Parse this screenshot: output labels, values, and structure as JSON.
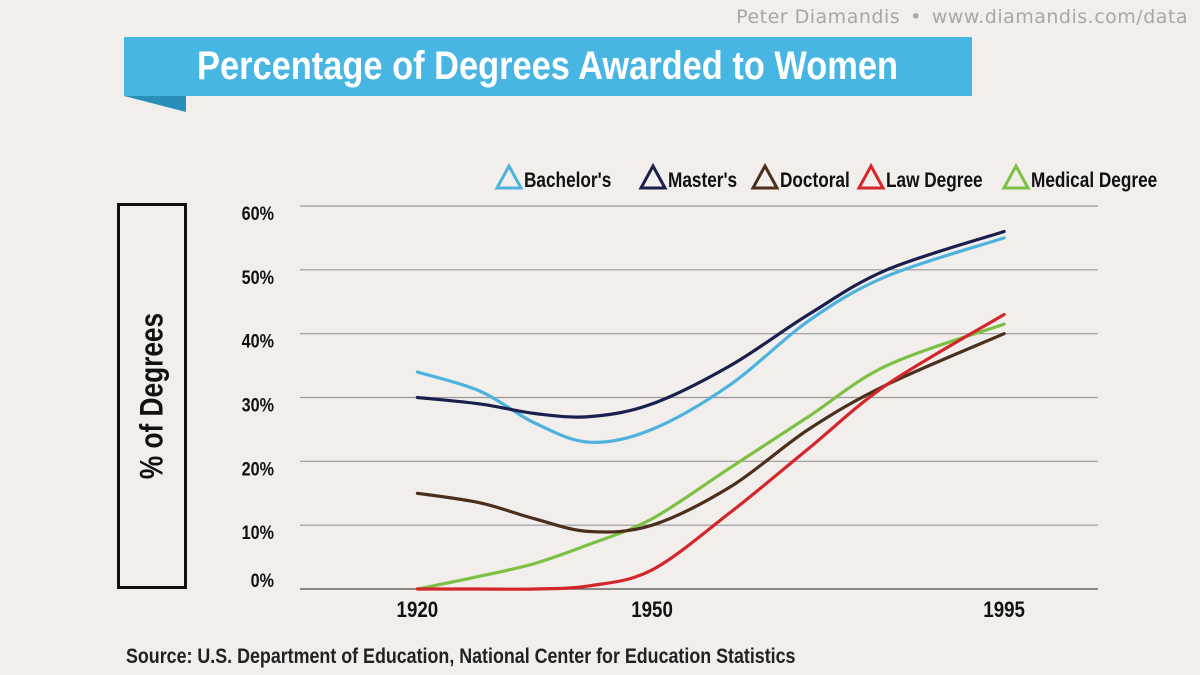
{
  "header": {
    "author": "Peter Diamandis",
    "separator": "•",
    "url": "www.diamandis.com/data"
  },
  "colors": {
    "banner": "#47b6e2",
    "banner_fold": "#2a8fb8",
    "background": "#f1eeeb",
    "grid": "#999999",
    "text": "#111111"
  },
  "chart_data": {
    "type": "line",
    "title": "Percentage of Degrees Awarded to Women",
    "ylabel": "% of Degrees",
    "xlabel": "",
    "ylim": [
      0,
      60
    ],
    "yticks": [
      0,
      10,
      20,
      30,
      40,
      50,
      60
    ],
    "ytick_labels": [
      "0%",
      "10%",
      "20%",
      "30%",
      "40%",
      "50%",
      "60%"
    ],
    "xticks": [
      1920,
      1950,
      1995
    ],
    "xtick_labels": [
      "1920",
      "1950",
      "1995"
    ],
    "xlim": [
      1905,
      2007
    ],
    "grid": true,
    "legend_position": "top-right",
    "source": "Source:  U.S. Department of Education, National Center for Education Statistics",
    "series": [
      {
        "name": "Bachelor's",
        "color": "#4db3de",
        "x": [
          1920,
          1928,
          1935,
          1942,
          1950,
          1960,
          1970,
          1980,
          1995
        ],
        "y": [
          34,
          31,
          26,
          23,
          25,
          32,
          42,
          49,
          55
        ]
      },
      {
        "name": "Master's",
        "color": "#1a1f4e",
        "x": [
          1920,
          1928,
          1935,
          1942,
          1950,
          1960,
          1970,
          1980,
          1995
        ],
        "y": [
          30,
          29,
          27.5,
          27,
          29,
          35,
          43,
          50,
          56
        ]
      },
      {
        "name": "Doctoral",
        "color": "#4a2f1f",
        "x": [
          1920,
          1928,
          1935,
          1942,
          1950,
          1960,
          1970,
          1980,
          1995
        ],
        "y": [
          15,
          13.5,
          11,
          9,
          10,
          16,
          25,
          32,
          40
        ]
      },
      {
        "name": "Law Degree",
        "color": "#d3262b",
        "x": [
          1920,
          1928,
          1935,
          1942,
          1950,
          1960,
          1970,
          1980,
          1995
        ],
        "y": [
          0,
          0,
          0,
          0.5,
          3,
          12,
          22,
          32,
          43
        ]
      },
      {
        "name": "Medical Degree",
        "color": "#7cc144",
        "x": [
          1920,
          1928,
          1935,
          1942,
          1950,
          1960,
          1970,
          1980,
          1995
        ],
        "y": [
          0,
          2,
          4,
          7,
          11,
          19,
          27,
          35,
          41.5
        ]
      }
    ]
  }
}
